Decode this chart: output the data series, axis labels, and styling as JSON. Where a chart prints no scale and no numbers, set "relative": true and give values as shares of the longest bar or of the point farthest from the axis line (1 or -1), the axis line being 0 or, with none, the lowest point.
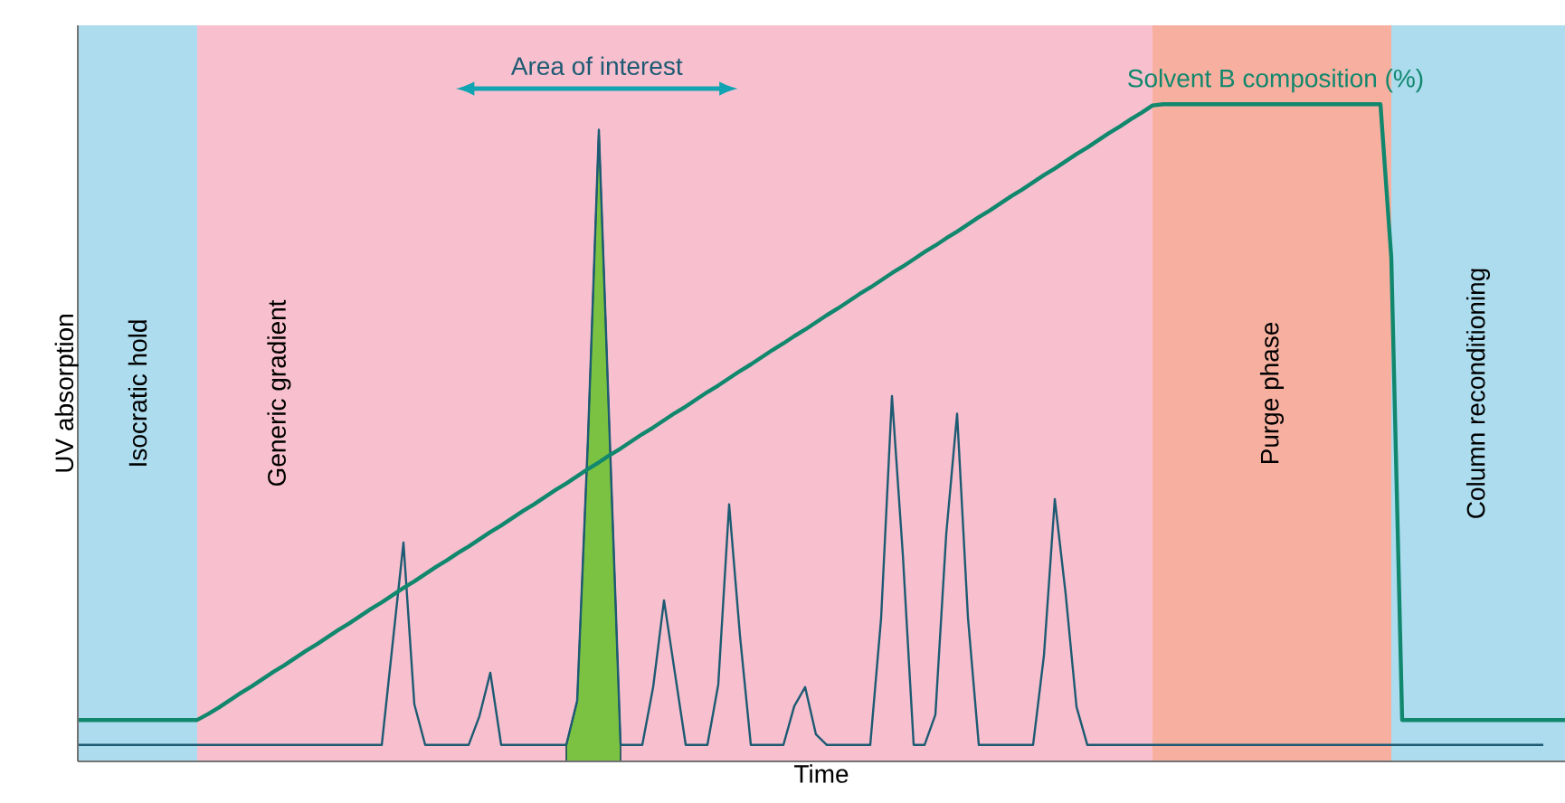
{
  "chart_data": {
    "type": "line",
    "relative": true,
    "xlabel": "Time",
    "ylabel": "UV absorption",
    "tick_labels": false,
    "marker": "none",
    "line_style": "solid",
    "annotations": [
      "Area of interest",
      "Isocratic hold",
      "Generic gradient",
      "Purge phase",
      "Column reconditioning"
    ],
    "categories": [
      null,
      null,
      null,
      null,
      null,
      null,
      null,
      null,
      null,
      null,
      null,
      null,
      null,
      null,
      null,
      null,
      null,
      null,
      null,
      null,
      null,
      null,
      null,
      null,
      null,
      null,
      null,
      null,
      null,
      null,
      null,
      null,
      null,
      null,
      null,
      null,
      null,
      null,
      null,
      null,
      null,
      null,
      null,
      null,
      null,
      null,
      null,
      null,
      null,
      null,
      null,
      null,
      null,
      null,
      null,
      null,
      null,
      null,
      null,
      null,
      null,
      null,
      null,
      null,
      null,
      null,
      null,
      null,
      null,
      null,
      null,
      null,
      null,
      null,
      null,
      null,
      null,
      null,
      null,
      null,
      null,
      null,
      null,
      null,
      null,
      null,
      null,
      null,
      null,
      null,
      null,
      null,
      null,
      null,
      null,
      null,
      null,
      null,
      null,
      null,
      null,
      null,
      null,
      null,
      null,
      null,
      null,
      null,
      null,
      null,
      null,
      null,
      null,
      null,
      null,
      null,
      null,
      null,
      null,
      null,
      null,
      null,
      null,
      null,
      null,
      null,
      null,
      null,
      null,
      null,
      null,
      null,
      null,
      null,
      null,
      null,
      null,
      null
    ],
    "series": [
      {
        "type": "area",
        "color": "#7cc242",
        "values": [
          null,
          null,
          null,
          null,
          null,
          null,
          null,
          null,
          null,
          null,
          null,
          null,
          null,
          null,
          null,
          null,
          null,
          null,
          null,
          null,
          null,
          null,
          null,
          null,
          null,
          null,
          null,
          null,
          null,
          null,
          null,
          null,
          null,
          null,
          null,
          null,
          null,
          null,
          null,
          null,
          null,
          null,
          null,
          null,
          null,
          0.025,
          0.092,
          0.493,
          0.961,
          0.493,
          0.025,
          null,
          null,
          null,
          null,
          null,
          null,
          null,
          null,
          null,
          null,
          null,
          null,
          null,
          null,
          null,
          null,
          null,
          null,
          null,
          null,
          null,
          null,
          null,
          null,
          null,
          null,
          null,
          null,
          null,
          null,
          null,
          null,
          null,
          null,
          null,
          null,
          null,
          null,
          null,
          null,
          null,
          null,
          null,
          null,
          null,
          null,
          null,
          null,
          null,
          null,
          null,
          null,
          null,
          null,
          null,
          null,
          null,
          null,
          null,
          null,
          null,
          null,
          null,
          null,
          null,
          null,
          null,
          null,
          null,
          null,
          null,
          null,
          null,
          null,
          null,
          null,
          null,
          null,
          null,
          null,
          null,
          null,
          null,
          null,
          null,
          null,
          null
        ]
      },
      {
        "color": "#1d5a73",
        "values": [
          0.025,
          0.025,
          0.025,
          0.025,
          0.025,
          0.025,
          0.025,
          0.025,
          0.025,
          0.025,
          0.025,
          0.025,
          0.025,
          0.025,
          0.025,
          0.025,
          0.025,
          0.025,
          0.025,
          0.025,
          0.025,
          0.025,
          0.025,
          0.025,
          0.025,
          0.025,
          0.025,
          0.025,
          0.025,
          0.179,
          0.333,
          0.087,
          0.025,
          0.025,
          0.025,
          0.025,
          0.025,
          0.069,
          0.135,
          0.025,
          0.025,
          0.025,
          0.025,
          0.025,
          0.025,
          0.025,
          0.092,
          0.493,
          0.961,
          0.493,
          0.025,
          0.025,
          0.025,
          0.113,
          0.245,
          0.135,
          0.025,
          0.025,
          0.025,
          0.117,
          0.391,
          0.191,
          0.025,
          0.025,
          0.025,
          0.025,
          0.084,
          0.113,
          0.041,
          0.025,
          0.025,
          0.025,
          0.025,
          0.025,
          0.218,
          0.556,
          0.315,
          0.025,
          0.025,
          0.071,
          0.346,
          0.529,
          0.219,
          0.025,
          0.025,
          0.025,
          0.025,
          0.025,
          0.025,
          0.161,
          0.399,
          0.255,
          0.083,
          0.025,
          0.025,
          0.025,
          0.025,
          0.025,
          0.025,
          0.025,
          0.025,
          0.025,
          0.025,
          0.025,
          0.025,
          0.025,
          0.025,
          0.025,
          0.025,
          0.025,
          0.025,
          0.025,
          0.025,
          0.025,
          0.025,
          0.025,
          0.025,
          0.025,
          0.025,
          0.025,
          0.025,
          0.025,
          0.025,
          0.025,
          0.025,
          0.025,
          0.025,
          0.025,
          0.025,
          0.025,
          0.025,
          0.025,
          0.025,
          0.025,
          0.025,
          0.025,
          null,
          null
        ]
      },
      {
        "name": "Solvent B composition (%)",
        "color": "#11876e",
        "values": [
          0.063,
          0.063,
          0.063,
          0.063,
          0.063,
          0.063,
          0.063,
          0.063,
          0.063,
          0.063,
          0.063,
          0.063,
          0.072,
          0.082,
          0.093,
          0.104,
          0.114,
          0.125,
          0.136,
          0.146,
          0.157,
          0.168,
          0.178,
          0.189,
          0.2,
          0.21,
          0.221,
          0.232,
          0.242,
          0.253,
          0.264,
          0.274,
          0.285,
          0.296,
          0.306,
          0.317,
          0.327,
          0.338,
          0.349,
          0.359,
          0.37,
          0.381,
          0.391,
          0.402,
          0.413,
          0.423,
          0.434,
          0.445,
          0.455,
          0.466,
          0.476,
          0.487,
          0.498,
          0.508,
          0.519,
          0.53,
          0.54,
          0.551,
          0.562,
          0.572,
          0.583,
          0.594,
          0.604,
          0.615,
          0.626,
          0.636,
          0.647,
          0.657,
          0.668,
          0.679,
          0.689,
          0.7,
          0.711,
          0.721,
          0.732,
          0.743,
          0.753,
          0.764,
          0.775,
          0.785,
          0.796,
          0.806,
          0.817,
          0.828,
          0.838,
          0.849,
          0.86,
          0.87,
          0.881,
          0.892,
          0.902,
          0.913,
          0.924,
          0.934,
          0.945,
          0.956,
          0.966,
          0.977,
          0.987,
          0.998,
          1,
          1,
          1,
          1,
          1,
          1,
          1,
          1,
          1,
          1,
          1,
          1,
          1,
          1,
          1,
          1,
          1,
          1,
          1,
          1,
          1,
          0.766,
          0.063,
          0.063,
          0.063,
          0.063,
          0.063,
          0.063,
          0.063,
          0.063,
          0.063,
          0.063,
          0.063,
          0.063,
          0.063,
          0.063,
          0.063,
          0.063
        ]
      }
    ]
  }
}
